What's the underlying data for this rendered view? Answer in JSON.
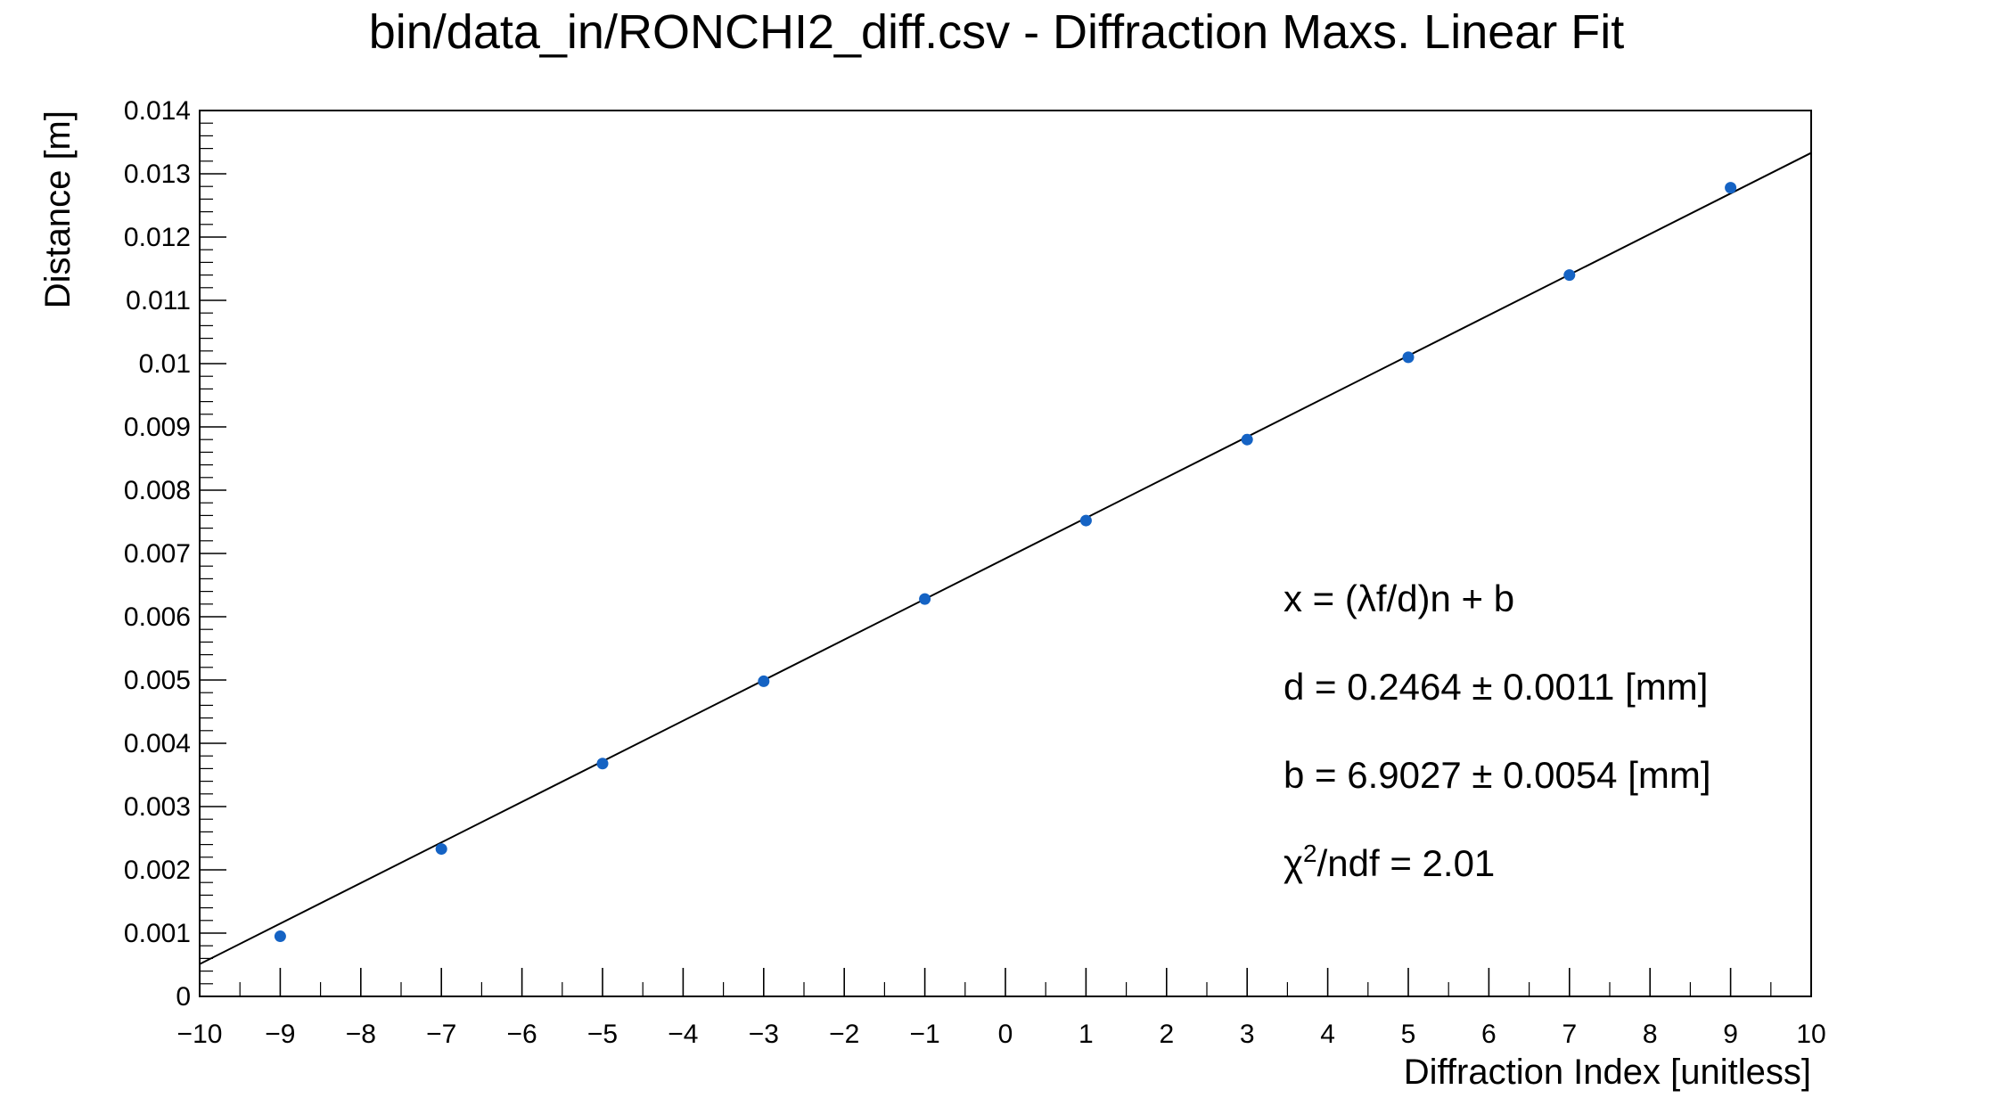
{
  "chart_data": {
    "type": "scatter",
    "title": "bin/data_in/RONCHI2_diff.csv - Diffraction Maxs. Linear Fit",
    "xlabel": "Diffraction Index [unitless]",
    "ylabel": "Distance [m]",
    "xlim": [
      -10,
      10
    ],
    "ylim": [
      0,
      0.014
    ],
    "x_ticks": [
      "−10",
      "−9",
      "−8",
      "−7",
      "−6",
      "−5",
      "−4",
      "−3",
      "−2",
      "−1",
      "0",
      "1",
      "2",
      "3",
      "4",
      "5",
      "6",
      "7",
      "8",
      "9",
      "10"
    ],
    "x_tick_values": [
      -10,
      -9,
      -8,
      -7,
      -6,
      -5,
      -4,
      -3,
      -2,
      -1,
      0,
      1,
      2,
      3,
      4,
      5,
      6,
      7,
      8,
      9,
      10
    ],
    "y_ticks": [
      "0",
      "0.001",
      "0.002",
      "0.003",
      "0.004",
      "0.005",
      "0.006",
      "0.007",
      "0.008",
      "0.009",
      "0.01",
      "0.011",
      "0.012",
      "0.013",
      "0.014"
    ],
    "y_tick_values": [
      0,
      0.001,
      0.002,
      0.003,
      0.004,
      0.005,
      0.006,
      0.007,
      0.008,
      0.009,
      0.01,
      0.011,
      0.012,
      0.013,
      0.014
    ],
    "grid": false,
    "series": [
      {
        "type": "scatter",
        "color": "#1563c4",
        "x": [
          -9,
          -7,
          -5,
          -3,
          -1,
          1,
          3,
          5,
          7,
          9
        ],
        "y": [
          0.00095,
          0.00233,
          0.00368,
          0.00498,
          0.00628,
          0.00752,
          0.0088,
          0.0101,
          0.0114,
          0.01278
        ]
      },
      {
        "type": "line",
        "color": "#000000",
        "x": [
          -10,
          10
        ],
        "y": [
          0.00051,
          0.01333
        ]
      }
    ],
    "annotations": [
      "x = (λf/d)n + b",
      "d = 0.2464 ± 0.0011 [mm]",
      "b = 6.9027 ± 0.0054 [mm]",
      {
        "base": "χ",
        "sup": "2",
        "rest": "/ndf = 2.01"
      }
    ]
  }
}
